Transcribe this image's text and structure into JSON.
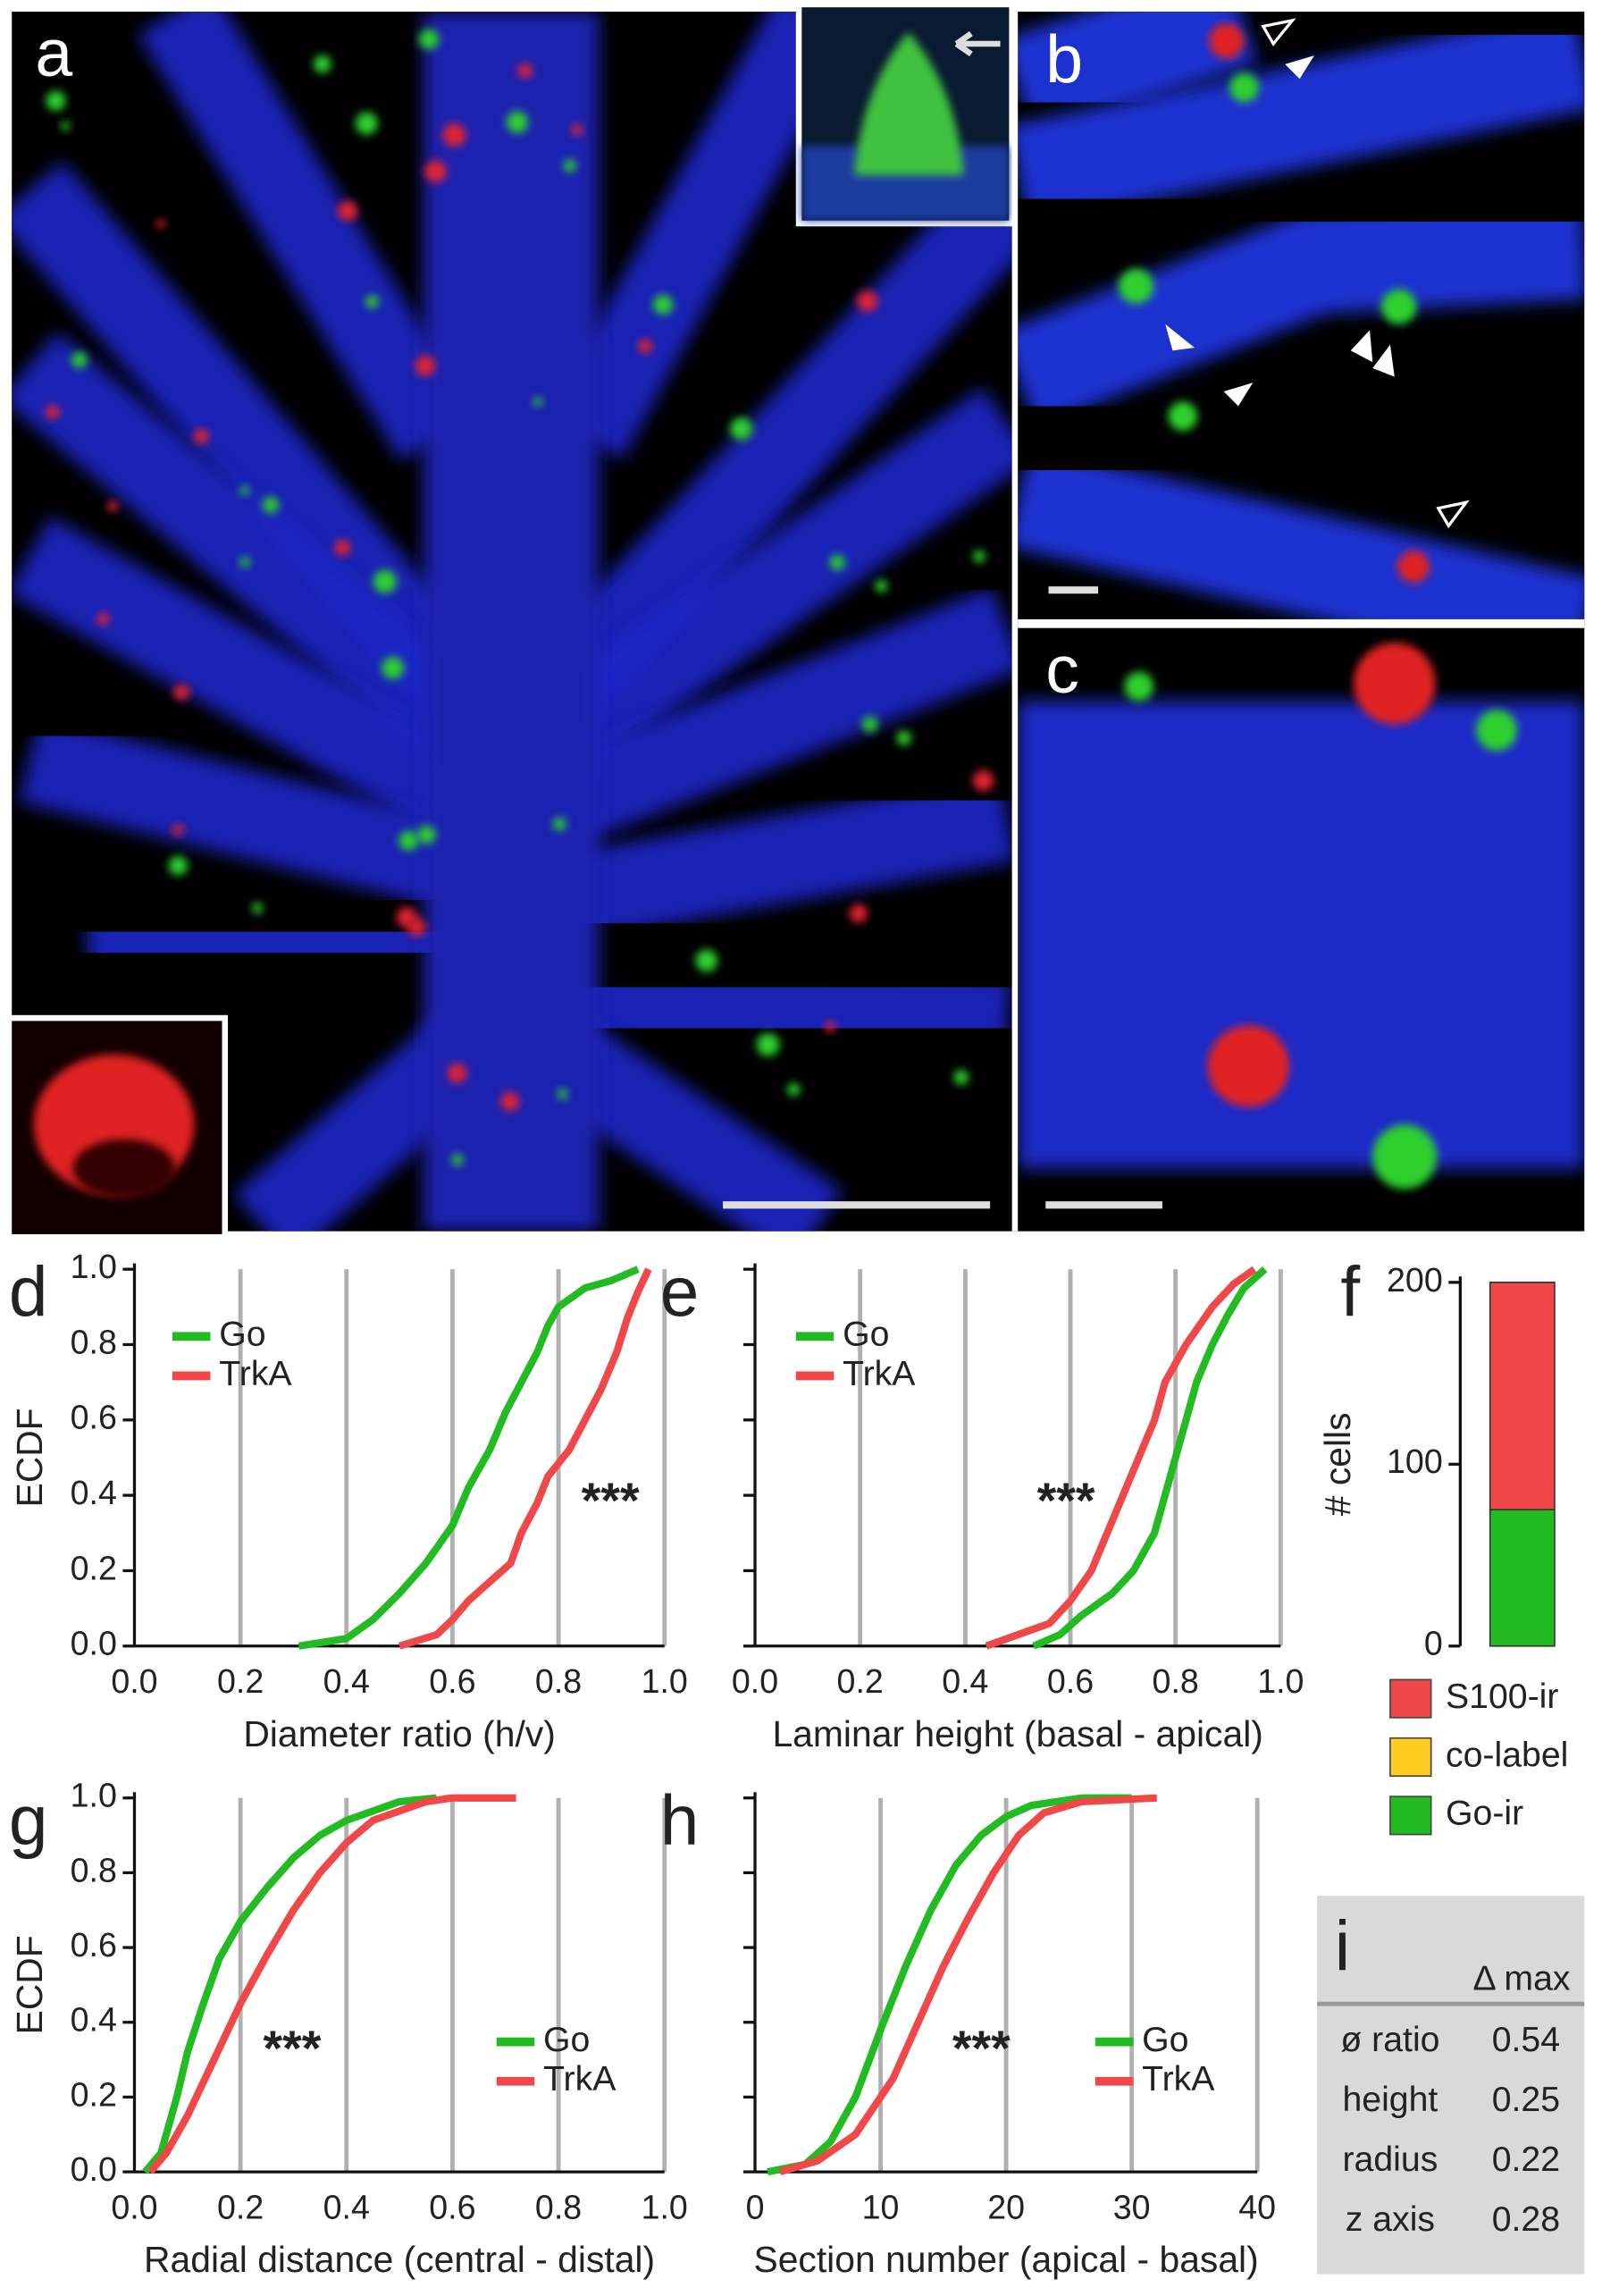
{
  "image_panels": {
    "labels": [
      "a",
      "b",
      "c"
    ]
  },
  "chart_data": [
    {
      "type": "line",
      "label": "d",
      "xlabel": "Diameter ratio (h/v)",
      "ylabel": "ECDF",
      "annotation": "***",
      "xlim": [
        0,
        1
      ],
      "ylim": [
        0,
        1
      ],
      "xticks": [
        {
          "value": 0,
          "label": "0.0"
        },
        0.2,
        0.4,
        0.6,
        0.8,
        {
          "value": 1,
          "label": "1.0"
        }
      ],
      "yticks": [
        {
          "value": 0,
          "label": "0.0"
        },
        0.2,
        0.4,
        0.6,
        0.8,
        {
          "value": 1,
          "label": "1.0"
        }
      ],
      "ytick_labels": true,
      "grid": true,
      "legend": "upper left",
      "series": [
        {
          "name": "Go",
          "color": "#22bb22",
          "x": [
            0.31,
            0.4,
            0.45,
            0.5,
            0.55,
            0.6,
            0.63,
            0.67,
            0.7,
            0.73,
            0.76,
            0.78,
            0.8,
            0.85,
            0.9,
            0.95
          ],
          "values": [
            0,
            0.02,
            0.07,
            0.14,
            0.22,
            0.32,
            0.42,
            0.52,
            0.62,
            0.7,
            0.78,
            0.85,
            0.9,
            0.95,
            0.97,
            1
          ]
        },
        {
          "name": "TrkA",
          "color": "#f04848",
          "x": [
            0.5,
            0.57,
            0.6,
            0.63,
            0.67,
            0.71,
            0.73,
            0.76,
            0.78,
            0.82,
            0.85,
            0.88,
            0.91,
            0.93,
            0.95,
            0.97
          ],
          "values": [
            0,
            0.03,
            0.07,
            0.12,
            0.17,
            0.22,
            0.3,
            0.38,
            0.45,
            0.52,
            0.6,
            0.68,
            0.78,
            0.87,
            0.94,
            1
          ]
        }
      ]
    },
    {
      "type": "line",
      "label": "e",
      "xlabel": "Laminar height  (basal - apical)",
      "annotation": "***",
      "xlim": [
        0,
        1
      ],
      "ylim": [
        0,
        1
      ],
      "xticks": [
        {
          "value": 0,
          "label": "0.0"
        },
        0.2,
        0.4,
        0.6,
        0.8,
        {
          "value": 1,
          "label": "1.0"
        }
      ],
      "yticks": [
        0,
        0.2,
        0.4,
        0.6,
        0.8,
        1
      ],
      "ytick_labels": false,
      "grid": true,
      "legend": "upper left",
      "series": [
        {
          "name": "Go",
          "color": "#22bb22",
          "x": [
            0.53,
            0.58,
            0.62,
            0.68,
            0.72,
            0.76,
            0.78,
            0.8,
            0.82,
            0.84,
            0.87,
            0.9,
            0.93,
            0.97
          ],
          "values": [
            0,
            0.03,
            0.08,
            0.14,
            0.2,
            0.3,
            0.4,
            0.5,
            0.6,
            0.7,
            0.8,
            0.88,
            0.95,
            1
          ]
        },
        {
          "name": "TrkA",
          "color": "#f04848",
          "x": [
            0.44,
            0.5,
            0.56,
            0.6,
            0.64,
            0.67,
            0.7,
            0.73,
            0.76,
            0.78,
            0.82,
            0.87,
            0.91,
            0.95
          ],
          "values": [
            0,
            0.03,
            0.06,
            0.12,
            0.2,
            0.3,
            0.4,
            0.5,
            0.6,
            0.7,
            0.8,
            0.9,
            0.96,
            1
          ]
        }
      ]
    },
    {
      "type": "bar",
      "label": "f",
      "ylabel": "# cells",
      "categories": [
        null
      ],
      "ylim": [
        0,
        200
      ],
      "yticks": [
        0,
        100,
        200
      ],
      "ytick_labels": true,
      "legend": "below",
      "series": [
        {
          "name": "Go-ir",
          "color": "#22bb22",
          "values": [
            75
          ]
        },
        {
          "name": "co-label",
          "color": "#ffcc22",
          "values": [
            0
          ]
        },
        {
          "name": "S100-ir",
          "color": "#f04848",
          "values": [
            125
          ]
        }
      ]
    },
    {
      "type": "line",
      "label": "g",
      "xlabel": "Radial distance (central - distal)",
      "ylabel": "ECDF",
      "annotation": "***",
      "xlim": [
        0,
        1
      ],
      "ylim": [
        0,
        1
      ],
      "xticks": [
        {
          "value": 0,
          "label": "0.0"
        },
        0.2,
        0.4,
        0.6,
        0.8,
        {
          "value": 1,
          "label": "1.0"
        }
      ],
      "yticks": [
        {
          "value": 0,
          "label": "0.0"
        },
        0.2,
        0.4,
        0.6,
        0.8,
        {
          "value": 1,
          "label": "1.0"
        }
      ],
      "ytick_labels": true,
      "grid": true,
      "legend": "lower right",
      "series": [
        {
          "name": "Go",
          "color": "#22bb22",
          "x": [
            0.02,
            0.05,
            0.08,
            0.1,
            0.13,
            0.16,
            0.2,
            0.25,
            0.3,
            0.35,
            0.4,
            0.5,
            0.57
          ],
          "values": [
            0,
            0.05,
            0.2,
            0.32,
            0.45,
            0.57,
            0.67,
            0.76,
            0.84,
            0.9,
            0.94,
            0.99,
            1
          ]
        },
        {
          "name": "TrkA",
          "color": "#f04848",
          "x": [
            0.03,
            0.06,
            0.1,
            0.15,
            0.2,
            0.25,
            0.3,
            0.35,
            0.4,
            0.45,
            0.55,
            0.6,
            0.72
          ],
          "values": [
            0,
            0.05,
            0.15,
            0.3,
            0.45,
            0.58,
            0.7,
            0.8,
            0.88,
            0.94,
            0.99,
            1,
            1
          ]
        }
      ]
    },
    {
      "type": "line",
      "label": "h",
      "xlabel": "Section number (apical - basal)",
      "annotation": "***",
      "xlim": [
        0,
        40
      ],
      "ylim": [
        0,
        1
      ],
      "xticks": [
        0,
        10,
        20,
        30,
        40
      ],
      "yticks": [
        0,
        0.2,
        0.4,
        0.6,
        0.8,
        1
      ],
      "ytick_labels": false,
      "grid": true,
      "legend": "lower right",
      "series": [
        {
          "name": "Go",
          "color": "#22bb22",
          "x": [
            1,
            4,
            6,
            8,
            10,
            12,
            14,
            16,
            18,
            20,
            22,
            26,
            30
          ],
          "values": [
            0,
            0.02,
            0.08,
            0.2,
            0.38,
            0.55,
            0.7,
            0.82,
            0.9,
            0.95,
            0.98,
            1,
            1
          ]
        },
        {
          "name": "TrkA",
          "color": "#f04848",
          "x": [
            2,
            5,
            8,
            11,
            13,
            15,
            17,
            19,
            21,
            23,
            26,
            32
          ],
          "values": [
            0,
            0.03,
            0.1,
            0.25,
            0.4,
            0.55,
            0.68,
            0.8,
            0.9,
            0.96,
            0.99,
            1
          ]
        }
      ]
    }
  ],
  "table": {
    "label": "i",
    "header": "Δ max",
    "rows": [
      [
        "ø ratio",
        0.54
      ],
      [
        "height",
        0.25
      ],
      [
        "radius",
        0.22
      ],
      [
        "z axis",
        0.28
      ]
    ]
  }
}
